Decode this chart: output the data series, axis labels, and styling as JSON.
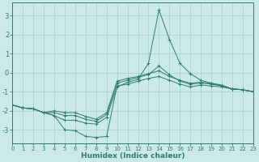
{
  "xlabel": "Humidex (Indice chaleur)",
  "background_color": "#cce9e9",
  "grid_color": "#aad4d4",
  "line_color": "#2e7d6e",
  "spine_color": "#2e7d6e",
  "xlim": [
    0,
    23
  ],
  "ylim": [
    -3.7,
    3.7
  ],
  "yticks": [
    -3,
    -2,
    -1,
    0,
    1,
    2,
    3
  ],
  "xticks": [
    0,
    1,
    2,
    3,
    4,
    5,
    6,
    7,
    8,
    9,
    10,
    11,
    12,
    13,
    14,
    15,
    16,
    17,
    18,
    19,
    20,
    21,
    22,
    23
  ],
  "series": [
    {
      "x": [
        0,
        1,
        2,
        3,
        4,
        5,
        6,
        7,
        8,
        9,
        10,
        11,
        12,
        13,
        14,
        15,
        16,
        17,
        18,
        19,
        20,
        21,
        22,
        23
      ],
      "y": [
        -1.7,
        -1.85,
        -1.9,
        -2.1,
        -2.25,
        -3.0,
        -3.05,
        -3.35,
        -3.4,
        -3.35,
        -0.7,
        -0.6,
        -0.45,
        -0.3,
        -0.2,
        -0.4,
        -0.6,
        -0.75,
        -0.65,
        -0.7,
        -0.75,
        -0.85,
        -0.9,
        -1.0
      ]
    },
    {
      "x": [
        0,
        1,
        2,
        3,
        4,
        5,
        6,
        7,
        8,
        9,
        10,
        11,
        12,
        13,
        14,
        15,
        16,
        17,
        18,
        19,
        20,
        21,
        22,
        23
      ],
      "y": [
        -1.7,
        -1.85,
        -1.9,
        -2.1,
        -2.25,
        -2.5,
        -2.5,
        -2.65,
        -2.7,
        -2.35,
        -0.75,
        -0.5,
        -0.35,
        0.5,
        3.3,
        1.75,
        0.5,
        -0.05,
        -0.4,
        -0.55,
        -0.7,
        -0.85,
        -0.9,
        -1.0
      ]
    },
    {
      "x": [
        0,
        1,
        2,
        3,
        4,
        5,
        6,
        7,
        8,
        9,
        10,
        11,
        12,
        13,
        14,
        15,
        16,
        17,
        18,
        19,
        20,
        21,
        22,
        23
      ],
      "y": [
        -1.7,
        -1.85,
        -1.9,
        -2.1,
        -2.1,
        -2.25,
        -2.25,
        -2.45,
        -2.55,
        -2.2,
        -0.55,
        -0.4,
        -0.25,
        -0.1,
        0.35,
        -0.1,
        -0.45,
        -0.6,
        -0.55,
        -0.6,
        -0.7,
        -0.85,
        -0.9,
        -1.0
      ]
    },
    {
      "x": [
        0,
        1,
        2,
        3,
        4,
        5,
        6,
        7,
        8,
        9,
        10,
        11,
        12,
        13,
        14,
        15,
        16,
        17,
        18,
        19,
        20,
        21,
        22,
        23
      ],
      "y": [
        -1.7,
        -1.85,
        -1.9,
        -2.1,
        -2.0,
        -2.1,
        -2.1,
        -2.3,
        -2.45,
        -2.1,
        -0.45,
        -0.3,
        -0.2,
        -0.05,
        0.1,
        -0.2,
        -0.4,
        -0.55,
        -0.5,
        -0.55,
        -0.65,
        -0.85,
        -0.9,
        -1.0
      ]
    }
  ]
}
